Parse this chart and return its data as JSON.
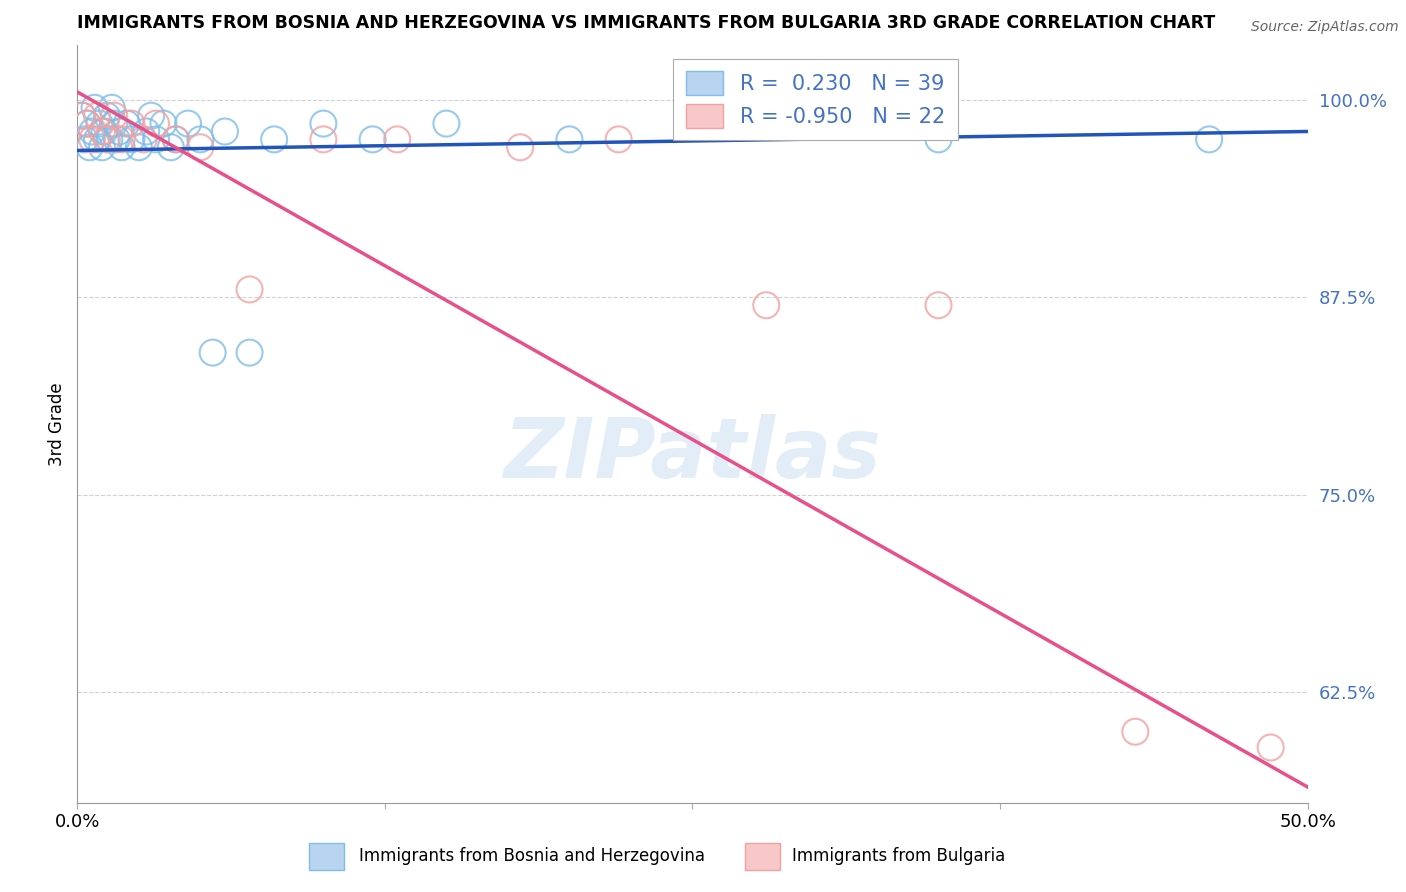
{
  "title": "IMMIGRANTS FROM BOSNIA AND HERZEGOVINA VS IMMIGRANTS FROM BULGARIA 3RD GRADE CORRELATION CHART",
  "source_text": "Source: ZipAtlas.com",
  "ylabel": "3rd Grade",
  "xlim": [
    0.0,
    0.5
  ],
  "ylim": [
    0.555,
    1.035
  ],
  "yticks": [
    0.625,
    0.75,
    0.875,
    1.0
  ],
  "ytick_labels": [
    "62.5%",
    "75.0%",
    "87.5%",
    "100.0%"
  ],
  "xticks": [
    0.0,
    0.125,
    0.25,
    0.375,
    0.5
  ],
  "xtick_labels": [
    "0.0%",
    "",
    "",
    "",
    "50.0%"
  ],
  "bosnia_color": "#7dbde8",
  "bulgaria_color": "#f4a0a0",
  "bosnia_R": 0.23,
  "bosnia_N": 39,
  "bulgaria_R": -0.95,
  "bulgaria_N": 22,
  "bosnia_line_color": "#2255bb",
  "bulgaria_line_color": "#e8508a",
  "bosnia_line_x0": 0.0,
  "bosnia_line_y0": 0.968,
  "bosnia_line_x1": 0.5,
  "bosnia_line_y1": 0.98,
  "bulgaria_line_x0": 0.0,
  "bulgaria_line_y0": 1.005,
  "bulgaria_line_x1": 0.5,
  "bulgaria_line_y1": 0.565,
  "watermark": "ZIPatlas",
  "bosnia_scatter_x": [
    0.002,
    0.003,
    0.004,
    0.005,
    0.006,
    0.007,
    0.008,
    0.009,
    0.01,
    0.011,
    0.012,
    0.013,
    0.014,
    0.015,
    0.016,
    0.017,
    0.018,
    0.02,
    0.022,
    0.025,
    0.028,
    0.03,
    0.032,
    0.035,
    0.038,
    0.04,
    0.045,
    0.05,
    0.055,
    0.06,
    0.07,
    0.08,
    0.1,
    0.12,
    0.15,
    0.2,
    0.25,
    0.35,
    0.46
  ],
  "bosnia_scatter_y": [
    0.99,
    0.975,
    0.985,
    0.97,
    0.98,
    0.995,
    0.975,
    0.985,
    0.97,
    0.98,
    0.99,
    0.975,
    0.995,
    0.985,
    0.975,
    0.98,
    0.97,
    0.985,
    0.975,
    0.97,
    0.98,
    0.99,
    0.975,
    0.985,
    0.97,
    0.975,
    0.985,
    0.975,
    0.84,
    0.98,
    0.84,
    0.975,
    0.985,
    0.975,
    0.985,
    0.975,
    0.985,
    0.975,
    0.975
  ],
  "bulgaria_scatter_x": [
    0.002,
    0.004,
    0.006,
    0.008,
    0.01,
    0.012,
    0.015,
    0.018,
    0.022,
    0.027,
    0.032,
    0.04,
    0.05,
    0.07,
    0.1,
    0.13,
    0.18,
    0.22,
    0.28,
    0.35,
    0.43,
    0.485
  ],
  "bulgaria_scatter_y": [
    0.99,
    0.985,
    0.975,
    0.99,
    0.98,
    0.975,
    0.99,
    0.975,
    0.985,
    0.975,
    0.985,
    0.975,
    0.97,
    0.88,
    0.975,
    0.975,
    0.97,
    0.975,
    0.87,
    0.87,
    0.6,
    0.59
  ],
  "legend_bosnia_label": "R =  0.230   N = 39",
  "legend_bulgaria_label": "R = -0.950   N = 22",
  "bottom_label_bosnia": "Immigrants from Bosnia and Herzegovina",
  "bottom_label_bulgaria": "Immigrants from Bulgaria"
}
